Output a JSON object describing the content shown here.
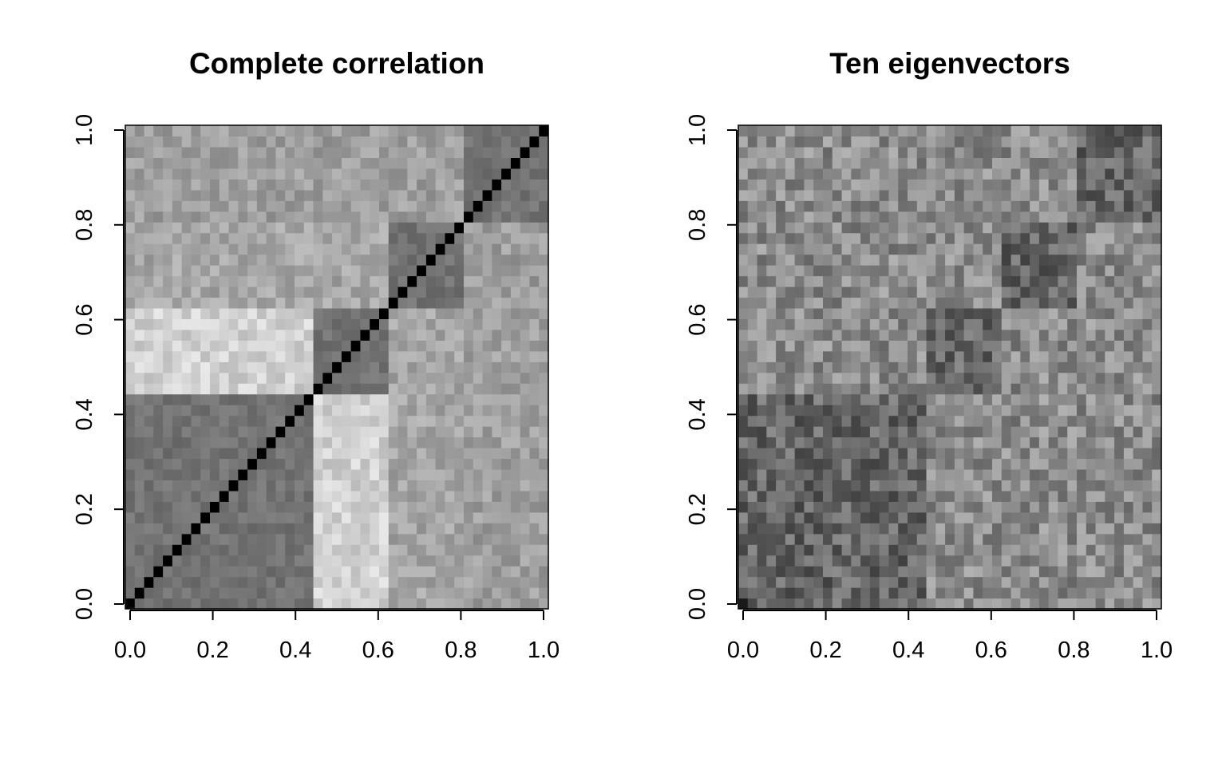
{
  "chart_data": [
    {
      "type": "heatmap",
      "title": "Complete correlation",
      "xlabel": "",
      "ylabel": "",
      "xlim": [
        0,
        1
      ],
      "ylim": [
        0,
        1
      ],
      "x_ticks": [
        "0.0",
        "0.2",
        "0.4",
        "0.6",
        "0.8",
        "1.0"
      ],
      "y_ticks": [
        "0.0",
        "0.2",
        "0.4",
        "0.6",
        "0.8",
        "1.0"
      ],
      "grid": false,
      "colormap": "grayscale, darker = higher value",
      "n_variables": 45,
      "blocks": [
        [
          0,
          20
        ],
        [
          20,
          28
        ],
        [
          28,
          36
        ],
        [
          36,
          45
        ]
      ],
      "diagonal_value": 1.0,
      "within_block_value": 0.55,
      "between_block_value": 0.35,
      "bright_cross_blocks": [
        [
          1,
          0
        ],
        [
          2,
          3
        ]
      ]
    },
    {
      "type": "heatmap",
      "title": "Ten eigenvectors",
      "xlabel": "",
      "ylabel": "",
      "xlim": [
        0,
        1
      ],
      "ylim": [
        0,
        1
      ],
      "x_ticks": [
        "0.0",
        "0.2",
        "0.4",
        "0.6",
        "0.8",
        "1.0"
      ],
      "y_ticks": [
        "0.0",
        "0.2",
        "0.4",
        "0.6",
        "0.8",
        "1.0"
      ],
      "grid": false,
      "colormap": "grayscale, darker = higher value",
      "n_variables": 45,
      "blocks": [
        [
          0,
          20
        ],
        [
          20,
          28
        ],
        [
          28,
          36
        ],
        [
          36,
          45
        ]
      ],
      "base_value": 0.45,
      "within_block_value": 0.6
    }
  ]
}
